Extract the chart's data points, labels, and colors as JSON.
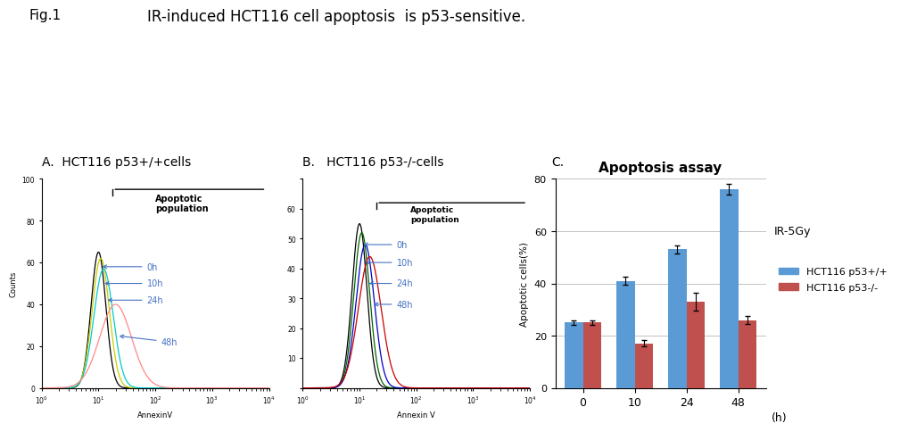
{
  "title": "IR-induced HCT116 cell apoptosis  is p53-sensitive.",
  "fig_label": "Fig.1",
  "panel_A_label": "A.  HCT116 p53+/+cells",
  "panel_B_label": "B.   HCT116 p53-/-cells",
  "panel_C_label": "C.",
  "bar_chart_title": "Apoptosis assay",
  "bar_xlabel": "(h)",
  "bar_ylabel": "Apoptotic cells(%)",
  "bar_categories": [
    "0",
    "10",
    "24",
    "48"
  ],
  "bar_blue": [
    25,
    41,
    53,
    76
  ],
  "bar_red": [
    25,
    17,
    33,
    26
  ],
  "bar_blue_err": [
    1.0,
    1.5,
    1.5,
    2.0
  ],
  "bar_red_err": [
    0.8,
    1.2,
    3.5,
    1.5
  ],
  "bar_ylim": [
    0,
    80
  ],
  "bar_yticks": [
    0,
    20,
    40,
    60,
    80
  ],
  "bar_blue_color": "#5B9BD5",
  "bar_red_color": "#C0504D",
  "legend_ir": "IR-5Gy",
  "legend_blue": "HCT116 p53+/+",
  "legend_red": "HCT116 p53-/-",
  "background_color": "#FFFFFF",
  "flow_A_colors": [
    "#000000",
    "#CCCC00",
    "#00CCCC",
    "#FF8888"
  ],
  "flow_A_labels": [
    "0h",
    "10h",
    "24h",
    "48h"
  ],
  "flow_B_colors": [
    "#000000",
    "#006600",
    "#0000CC",
    "#CC0000"
  ],
  "flow_B_labels": [
    "0h",
    "10h",
    "24h",
    "48h"
  ],
  "arrow_color": "#4472C4"
}
